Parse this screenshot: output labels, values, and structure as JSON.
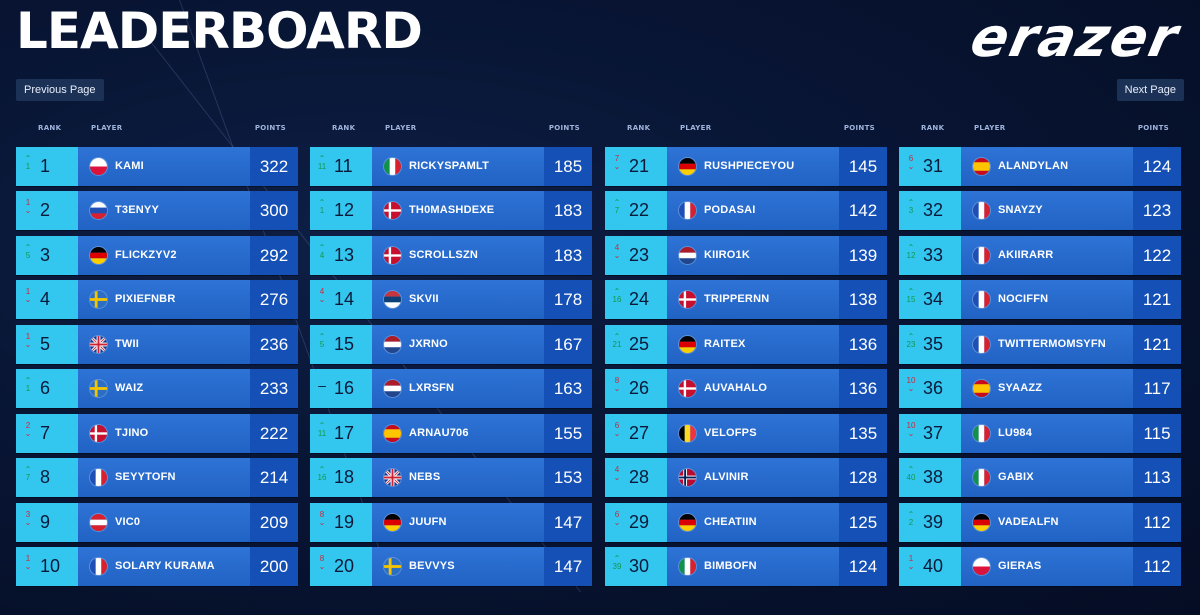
{
  "header": {
    "title": "LEADERBOARD",
    "brand": "erazer"
  },
  "pager": {
    "prev_label": "Previous Page",
    "next_label": "Next Page"
  },
  "columns_labels": {
    "rank": "RANK",
    "player": "PLAYER",
    "points": "POINTS"
  },
  "flag_colors": {
    "pl": [
      "#ffffff",
      "#dc143c"
    ],
    "si": [
      "#ffffff",
      "#1f4fb5",
      "#d9202e"
    ],
    "de": [
      "#000000",
      "#dd0000",
      "#ffce00"
    ],
    "se": [
      "#2b6fc2",
      "#f5c400"
    ],
    "gb": [
      "#1f3c8c",
      "#ffffff",
      "#cc2233"
    ],
    "dk": [
      "#c8102e",
      "#ffffff"
    ],
    "fr": [
      "#1f4fb5",
      "#ffffff",
      "#d9202e"
    ],
    "at": [
      "#d9202e",
      "#ffffff"
    ],
    "it": [
      "#11924a",
      "#ffffff",
      "#d9202e"
    ],
    "rs": [
      "#c6363c",
      "#0c4076",
      "#ffffff"
    ],
    "nl": [
      "#ae1c28",
      "#ffffff",
      "#21468b"
    ],
    "es": [
      "#c60b1e",
      "#ffc400"
    ],
    "be": [
      "#000000",
      "#fdda24",
      "#ef3340"
    ],
    "no": [
      "#ba0c2f",
      "#ffffff",
      "#00205b"
    ]
  },
  "columns": [
    {
      "rows": [
        {
          "rank": "1",
          "change": "1",
          "dir": "up",
          "player": "KAMI",
          "flag": "pl",
          "points": "322"
        },
        {
          "rank": "2",
          "change": "1",
          "dir": "down",
          "player": "T3ENYY",
          "flag": "si",
          "points": "300"
        },
        {
          "rank": "3",
          "change": "5",
          "dir": "up",
          "player": "FLICKZYV2",
          "flag": "de",
          "points": "292"
        },
        {
          "rank": "4",
          "change": "1",
          "dir": "down",
          "player": "PIXIEFNBR",
          "flag": "se",
          "points": "276"
        },
        {
          "rank": "5",
          "change": "1",
          "dir": "down",
          "player": "TWII",
          "flag": "gb",
          "points": "236"
        },
        {
          "rank": "6",
          "change": "1",
          "dir": "up",
          "player": "WAIZ",
          "flag": "se",
          "points": "233"
        },
        {
          "rank": "7",
          "change": "2",
          "dir": "down",
          "player": "TJINO",
          "flag": "dk",
          "points": "222"
        },
        {
          "rank": "8",
          "change": "7",
          "dir": "up",
          "player": "SEYYTOFN",
          "flag": "fr",
          "points": "214"
        },
        {
          "rank": "9",
          "change": "3",
          "dir": "down",
          "player": "VIC0",
          "flag": "at",
          "points": "209"
        },
        {
          "rank": "10",
          "change": "1",
          "dir": "down",
          "player": "SOLARY KURAMA",
          "flag": "fr",
          "points": "200"
        }
      ]
    },
    {
      "rows": [
        {
          "rank": "11",
          "change": "11",
          "dir": "up",
          "player": "RICKYSPAMLT",
          "flag": "it",
          "points": "185"
        },
        {
          "rank": "12",
          "change": "1",
          "dir": "up",
          "player": "TH0MASHDEXE",
          "flag": "dk",
          "points": "183"
        },
        {
          "rank": "13",
          "change": "4",
          "dir": "up",
          "player": "SCROLLSZN",
          "flag": "dk",
          "points": "183"
        },
        {
          "rank": "14",
          "change": "4",
          "dir": "down",
          "player": "SKVII",
          "flag": "rs",
          "points": "178"
        },
        {
          "rank": "15",
          "change": "5",
          "dir": "up",
          "player": "JXRNO",
          "flag": "nl",
          "points": "167"
        },
        {
          "rank": "16",
          "change": "–",
          "dir": "same",
          "player": "LXRSFN",
          "flag": "nl",
          "points": "163"
        },
        {
          "rank": "17",
          "change": "11",
          "dir": "up",
          "player": "ARNAU706",
          "flag": "es",
          "points": "155"
        },
        {
          "rank": "18",
          "change": "16",
          "dir": "up",
          "player": "NEBS",
          "flag": "gb",
          "points": "153"
        },
        {
          "rank": "19",
          "change": "8",
          "dir": "down",
          "player": "JUUFN",
          "flag": "de",
          "points": "147"
        },
        {
          "rank": "20",
          "change": "8",
          "dir": "down",
          "player": "BEVVYS",
          "flag": "se",
          "points": "147"
        }
      ]
    },
    {
      "rows": [
        {
          "rank": "21",
          "change": "7",
          "dir": "down",
          "player": "RUSHPIECEYOU",
          "flag": "de",
          "points": "145"
        },
        {
          "rank": "22",
          "change": "7",
          "dir": "up",
          "player": "PODASAI",
          "flag": "fr",
          "points": "142"
        },
        {
          "rank": "23",
          "change": "4",
          "dir": "down",
          "player": "KIIRO1K",
          "flag": "nl",
          "points": "139"
        },
        {
          "rank": "24",
          "change": "16",
          "dir": "up",
          "player": "TRIPPERNN",
          "flag": "dk",
          "points": "138"
        },
        {
          "rank": "25",
          "change": "21",
          "dir": "up",
          "player": "RAITEX",
          "flag": "de",
          "points": "136"
        },
        {
          "rank": "26",
          "change": "8",
          "dir": "down",
          "player": "AUVAHALO",
          "flag": "dk",
          "points": "136"
        },
        {
          "rank": "27",
          "change": "6",
          "dir": "down",
          "player": "VELOFPS",
          "flag": "be",
          "points": "135"
        },
        {
          "rank": "28",
          "change": "4",
          "dir": "down",
          "player": "ALVINIR",
          "flag": "no",
          "points": "128"
        },
        {
          "rank": "29",
          "change": "6",
          "dir": "down",
          "player": "CHEATIIN",
          "flag": "de",
          "points": "125"
        },
        {
          "rank": "30",
          "change": "39",
          "dir": "up",
          "player": "BIMBOFN",
          "flag": "it",
          "points": "124"
        }
      ]
    },
    {
      "rows": [
        {
          "rank": "31",
          "change": "6",
          "dir": "down",
          "player": "ALANDYLAN",
          "flag": "es",
          "points": "124"
        },
        {
          "rank": "32",
          "change": "3",
          "dir": "up",
          "player": "SNAYZY",
          "flag": "fr",
          "points": "123"
        },
        {
          "rank": "33",
          "change": "12",
          "dir": "up",
          "player": "AKIIRARR",
          "flag": "fr",
          "points": "122"
        },
        {
          "rank": "34",
          "change": "15",
          "dir": "up",
          "player": "NOCIFFN",
          "flag": "fr",
          "points": "121"
        },
        {
          "rank": "35",
          "change": "23",
          "dir": "up",
          "player": "TWITTERMOMSYFN",
          "flag": "fr",
          "points": "121"
        },
        {
          "rank": "36",
          "change": "10",
          "dir": "down",
          "player": "SYAAZZ",
          "flag": "es",
          "points": "117"
        },
        {
          "rank": "37",
          "change": "10",
          "dir": "down",
          "player": "LU984",
          "flag": "it",
          "points": "115"
        },
        {
          "rank": "38",
          "change": "40",
          "dir": "up",
          "player": "GABIX",
          "flag": "it",
          "points": "113"
        },
        {
          "rank": "39",
          "change": "2",
          "dir": "up",
          "player": "VADEALFN",
          "flag": "de",
          "points": "112"
        },
        {
          "rank": "40",
          "change": "1",
          "dir": "down",
          "player": "GIERAS",
          "flag": "pl",
          "points": "112"
        }
      ]
    }
  ]
}
